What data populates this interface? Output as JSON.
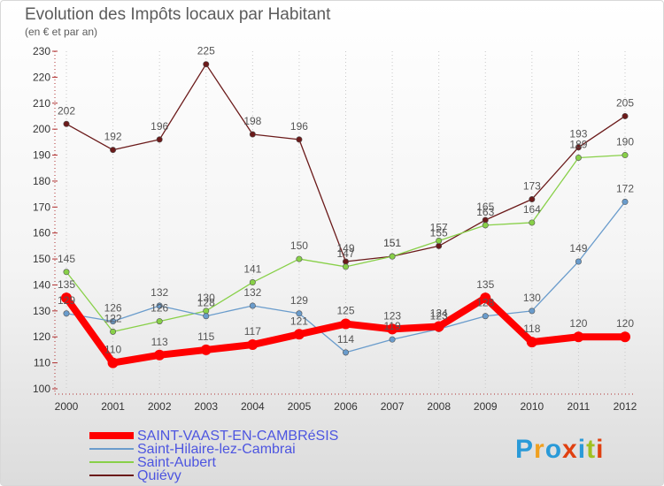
{
  "chart_data": {
    "type": "line",
    "title": "Evolution des Impôts locaux par Habitant",
    "subtitle": "(en € et par an)",
    "categories": [
      "2000",
      "2001",
      "2002",
      "2003",
      "2004",
      "2005",
      "2006",
      "2007",
      "2008",
      "2009",
      "2010",
      "2011",
      "2012"
    ],
    "y_ticks": [
      "100",
      "110",
      "120",
      "130",
      "140",
      "150",
      "160",
      "170",
      "180",
      "190",
      "200",
      "210",
      "220",
      "230"
    ],
    "ylim": [
      100,
      230
    ],
    "grid": "vertical",
    "legend_position": "bottom-left",
    "series": [
      {
        "name": "Quiévy",
        "color": "#6b1a1a",
        "values": [
          202,
          192,
          196,
          225,
          198,
          196,
          149,
          151,
          155,
          165,
          173,
          193,
          205
        ]
      },
      {
        "name": "Saint-Aubert",
        "color": "#88d048",
        "values": [
          145,
          122,
          126,
          130,
          141,
          150,
          147,
          151,
          157,
          163,
          164,
          189,
          190
        ]
      },
      {
        "name": "Saint-Hilaire-lez-Cambrai",
        "color": "#6a9ccc",
        "values": [
          129,
          126,
          132,
          128,
          132,
          129,
          114,
          119,
          123,
          128,
          130,
          149,
          172
        ]
      },
      {
        "name": "SAINT-VAAST-EN-CAMBRéSIS",
        "color": "#ff0000",
        "values": [
          135,
          110,
          113,
          115,
          117,
          121,
          125,
          123,
          124,
          135,
          118,
          120,
          120
        ]
      }
    ],
    "legend_order": [
      3,
      2,
      1,
      0
    ]
  },
  "brand": {
    "text": "Proxiti",
    "colors": [
      "#2a9ad8",
      "#f0a020",
      "#2a9ad8",
      "#e04010",
      "#2a9ad8",
      "#a0c020",
      "#e04010"
    ]
  }
}
